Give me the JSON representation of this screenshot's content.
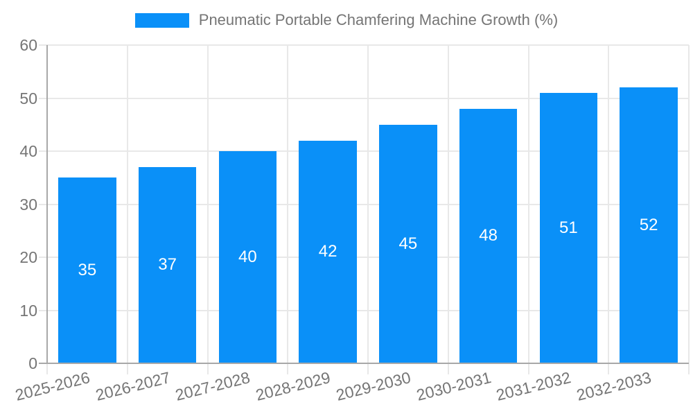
{
  "chart_data": {
    "type": "bar",
    "title": "Pneumatic Portable Chamfering Machine Growth (%)",
    "legend": {
      "position": "top",
      "label": "Pneumatic Portable Chamfering Machine Growth (%)"
    },
    "categories": [
      "2025-2026",
      "2026-2027",
      "2027-2028",
      "2028-2029",
      "2029-2030",
      "2030-2031",
      "2031-2032",
      "2032-2033"
    ],
    "series": [
      {
        "name": "Pneumatic Portable Chamfering Machine Growth (%)",
        "values": [
          35,
          37,
          40,
          42,
          45,
          48,
          51,
          52
        ]
      }
    ],
    "bar_labels": [
      35,
      37,
      40,
      42,
      45,
      48,
      51,
      52
    ],
    "xlabel": "",
    "ylabel": "",
    "ylim": [
      0,
      60
    ],
    "yticks": [
      0,
      10,
      20,
      30,
      40,
      50,
      60
    ],
    "grid": true,
    "x_tick_rotation_deg": -14,
    "bar_width_fraction": 0.72,
    "colors": {
      "bar": "#0A90F8",
      "axis": "#A8A8A8",
      "grid": "#E8E8E8",
      "text": "#757575",
      "bar_label": "#FFFFFF",
      "background": "#FFFFFF"
    }
  }
}
